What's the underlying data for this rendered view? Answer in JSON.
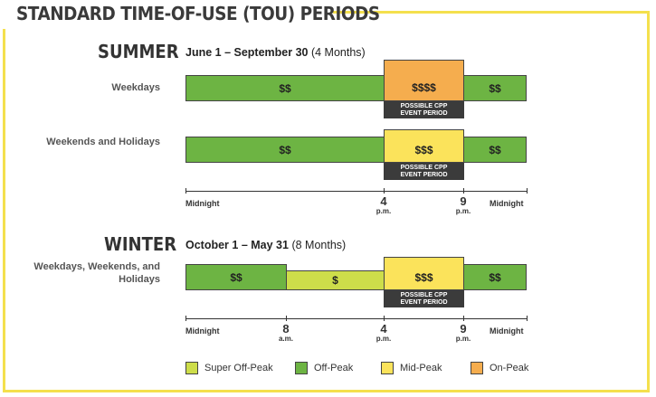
{
  "title": "STANDARD TIME-OF-USE (TOU) PERIODS",
  "summer": {
    "name": "SUMMER",
    "dates_bold": "June 1 – September 30",
    "dates_extra": "(4 Months)",
    "rows": [
      {
        "label": "Weekdays",
        "segments": [
          "$$",
          "$$$$",
          "$$"
        ]
      },
      {
        "label": "Weekends and Holidays",
        "segments": [
          "$$",
          "$$$",
          "$$"
        ]
      }
    ],
    "ticks": [
      {
        "num": "Midnight",
        "unit": ""
      },
      {
        "num": "4",
        "unit": "p.m."
      },
      {
        "num": "9",
        "unit": "p.m."
      },
      {
        "num": "Midnight",
        "unit": ""
      }
    ]
  },
  "winter": {
    "name": "WINTER",
    "dates_bold": "October 1 – May 31",
    "dates_extra": "(8 Months)",
    "rows": [
      {
        "label": "Weekdays, Weekends, and Holidays",
        "segments": [
          "$$",
          "$",
          "$$$",
          "$$"
        ]
      }
    ],
    "ticks": [
      {
        "num": "Midnight",
        "unit": ""
      },
      {
        "num": "8",
        "unit": "a.m."
      },
      {
        "num": "4",
        "unit": "p.m."
      },
      {
        "num": "9",
        "unit": "p.m."
      },
      {
        "num": "Midnight",
        "unit": ""
      }
    ]
  },
  "cpp_line1": "POSSIBLE CPP",
  "cpp_line2": "EVENT PERIOD",
  "legend": [
    {
      "label": "Super Off-Peak",
      "color": "#cddd4a"
    },
    {
      "label": "Off-Peak",
      "color": "#6db443"
    },
    {
      "label": "Mid-Peak",
      "color": "#fbe35b"
    },
    {
      "label": "On-Peak",
      "color": "#f5ad4e"
    }
  ]
}
